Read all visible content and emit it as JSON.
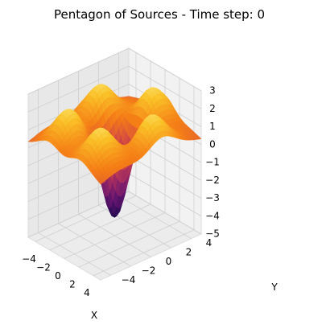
{
  "chart_data": {
    "type": "surface3d",
    "title": "Pentagon of Sources - Time step: 0",
    "xlabel": "X",
    "ylabel": "Y",
    "zlabel": "",
    "xlim": [
      -5,
      5
    ],
    "ylim": [
      -5,
      5
    ],
    "zlim": [
      -5,
      3
    ],
    "x_ticks": [
      -4,
      -2,
      0,
      2,
      4
    ],
    "y_ticks": [
      -4,
      -2,
      0,
      2,
      4
    ],
    "z_ticks": [
      -5,
      -4,
      -3,
      -2,
      -1,
      0,
      1,
      2,
      3
    ],
    "colormap": "inferno",
    "grid": true,
    "sources": {
      "count": 5,
      "arrangement": "regular pentagon",
      "radius": 3.5,
      "amplitude": 2.2,
      "width": 1.25
    },
    "center_dip": {
      "x": 0,
      "y": 0,
      "z": -4.8
    },
    "time_step": 0
  }
}
